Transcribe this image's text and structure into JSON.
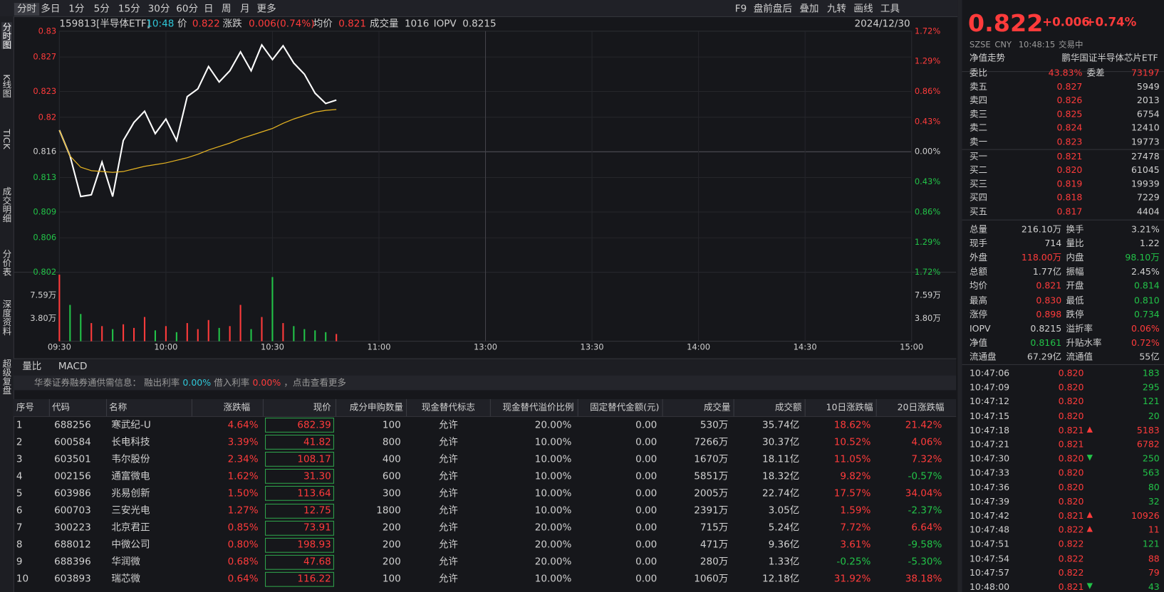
{
  "toolbar": {
    "tabs": [
      "分时",
      "多日",
      "1分",
      "5分",
      "15分",
      "30分",
      "60分",
      "日",
      "周",
      "月",
      "更多"
    ],
    "tools": [
      "F9",
      "盘前盘后",
      "叠加",
      "九转",
      "画线",
      "工具"
    ]
  },
  "sidebar": [
    "分时图",
    "K线图",
    "TICK",
    "成交明细",
    "分价表",
    "深度资料",
    "超级复盘"
  ],
  "header": {
    "code": "159813[半导体ETF]",
    "time": "10:48",
    "price_label": "价",
    "price": "0.822",
    "change_label": "涨跌",
    "change": "0.006(0.74%)",
    "avg_label": "均价",
    "avg": "0.821",
    "volume_label": "成交量",
    "volume": "1016",
    "iopv_label": "IOPV",
    "iopv": "0.8215",
    "date": "2024/12/30"
  },
  "chart_data": [
    {
      "type": "line",
      "grid": true,
      "x": [
        "09:30",
        "09:33",
        "09:36",
        "09:39",
        "09:42",
        "09:45",
        "09:48",
        "09:51",
        "09:54",
        "09:57",
        "10:00",
        "10:03",
        "10:06",
        "10:09",
        "10:12",
        "10:15",
        "10:18",
        "10:21",
        "10:24",
        "10:27",
        "10:30",
        "10:33",
        "10:36",
        "10:39",
        "10:42",
        "10:45",
        "10:48"
      ],
      "series": [
        {
          "color": "#ffffff",
          "values": [
            0.8185,
            0.8155,
            0.8108,
            0.811,
            0.8148,
            0.8108,
            0.8173,
            0.8194,
            0.8207,
            0.8181,
            0.8198,
            0.8173,
            0.8224,
            0.8233,
            0.8259,
            0.8241,
            0.8254,
            0.8276,
            0.8254,
            0.8284,
            0.8267,
            0.8283,
            0.8263,
            0.825,
            0.8228,
            0.8216,
            0.822
          ]
        },
        {
          "color": "#e6b422",
          "values": [
            0.8185,
            0.8155,
            0.8142,
            0.8138,
            0.8137,
            0.8136,
            0.8137,
            0.814,
            0.8143,
            0.8145,
            0.8147,
            0.815,
            0.8153,
            0.8157,
            0.8162,
            0.8166,
            0.817,
            0.8175,
            0.8179,
            0.8183,
            0.8187,
            0.8193,
            0.8198,
            0.8202,
            0.8206,
            0.8208,
            0.8209
          ]
        }
      ],
      "ylim": [
        0.802,
        0.83
      ],
      "yticks": [
        0.83,
        0.827,
        0.823,
        0.82,
        0.816,
        0.813,
        0.809,
        0.806,
        0.802
      ],
      "y2lim": [
        -1.72,
        1.72
      ],
      "y2ticks": [
        {
          "value": 1.72,
          "label": "1.72%"
        },
        {
          "value": 1.29,
          "label": "1.29%"
        },
        {
          "value": 0.86,
          "label": "0.86%"
        },
        {
          "value": 0.43,
          "label": "0.43%"
        },
        {
          "value": 0,
          "label": "0.00%"
        },
        {
          "value": -0.43,
          "label": "0.43%"
        },
        {
          "value": -0.86,
          "label": "0.86%"
        },
        {
          "value": -1.29,
          "label": "1.29%"
        },
        {
          "value": -1.72,
          "label": "1.72%"
        }
      ],
      "xticks": [
        "09:30",
        "10:00",
        "10:30",
        "11:00",
        "13:00",
        "13:30",
        "14:00",
        "14:30",
        "15:00"
      ]
    },
    {
      "type": "bar",
      "x": [
        "09:30",
        "09:33",
        "09:36",
        "09:39",
        "09:42",
        "09:45",
        "09:48",
        "09:51",
        "09:54",
        "09:57",
        "10:00",
        "10:03",
        "10:06",
        "10:09",
        "10:12",
        "10:15",
        "10:18",
        "10:21",
        "10:24",
        "10:27",
        "10:30",
        "10:33",
        "10:36",
        "10:39",
        "10:42",
        "10:45",
        "10:48"
      ],
      "values": [
        110000,
        60000,
        45000,
        30000,
        25000,
        20000,
        28000,
        22000,
        40000,
        18000,
        25000,
        15000,
        30000,
        20000,
        35000,
        22000,
        25000,
        60000,
        20000,
        40000,
        106000,
        30000,
        25000,
        20000,
        18000,
        15000,
        12000
      ],
      "ylim": [
        0,
        113900
      ],
      "yticks": [
        {
          "value": 75900,
          "label": "7.59万"
        },
        {
          "value": 37950,
          "label": "3.80万"
        }
      ]
    }
  ],
  "indicator_tabs": [
    "量比",
    "MACD"
  ],
  "notice": {
    "source": "华泰证券融券通供需信息：",
    "lend_label": "融出利率",
    "lend": "0.00%",
    "borrow_label": "借入利率",
    "borrow": "0.00%",
    "more": "，点击查看更多"
  },
  "table": {
    "headers": [
      "序号",
      "代码",
      "名称",
      "涨跌幅",
      "现价",
      "成分申购数量",
      "现金替代标志",
      "现金替代溢价比例",
      "固定替代金额(元)",
      "成交量",
      "成交额",
      "10日涨跌幅",
      "20日涨跌幅"
    ],
    "rows": [
      [
        "1",
        "688256",
        "寒武纪-U",
        "4.64%",
        "682.39",
        "100",
        "允许",
        "20.00%",
        "0.00",
        "530万",
        "35.74亿",
        "18.62%",
        "21.42%"
      ],
      [
        "2",
        "600584",
        "长电科技",
        "3.39%",
        "41.82",
        "800",
        "允许",
        "10.00%",
        "0.00",
        "7266万",
        "30.37亿",
        "10.52%",
        "4.06%"
      ],
      [
        "3",
        "603501",
        "韦尔股份",
        "2.34%",
        "108.17",
        "400",
        "允许",
        "10.00%",
        "0.00",
        "1670万",
        "18.11亿",
        "11.05%",
        "7.32%"
      ],
      [
        "4",
        "002156",
        "通富微电",
        "1.62%",
        "31.30",
        "600",
        "允许",
        "10.00%",
        "0.00",
        "5851万",
        "18.32亿",
        "9.82%",
        "-0.57%"
      ],
      [
        "5",
        "603986",
        "兆易创新",
        "1.50%",
        "113.64",
        "300",
        "允许",
        "10.00%",
        "0.00",
        "2005万",
        "22.74亿",
        "17.57%",
        "34.04%"
      ],
      [
        "6",
        "600703",
        "三安光电",
        "1.27%",
        "12.75",
        "1800",
        "允许",
        "10.00%",
        "0.00",
        "2391万",
        "3.05亿",
        "1.59%",
        "-2.37%"
      ],
      [
        "7",
        "300223",
        "北京君正",
        "0.85%",
        "73.91",
        "200",
        "允许",
        "20.00%",
        "0.00",
        "715万",
        "5.24亿",
        "7.72%",
        "6.64%"
      ],
      [
        "8",
        "688012",
        "中微公司",
        "0.80%",
        "198.93",
        "200",
        "允许",
        "20.00%",
        "0.00",
        "471万",
        "9.36亿",
        "3.61%",
        "-9.58%"
      ],
      [
        "9",
        "688396",
        "华润微",
        "0.68%",
        "47.68",
        "200",
        "允许",
        "20.00%",
        "0.00",
        "280万",
        "1.33亿",
        "-0.25%",
        "-5.30%"
      ],
      [
        "10",
        "603893",
        "瑞芯微",
        "0.64%",
        "116.22",
        "100",
        "允许",
        "10.00%",
        "0.00",
        "1060万",
        "12.18亿",
        "31.92%",
        "38.18%"
      ]
    ]
  },
  "quote": {
    "price": "0.822",
    "change": "+0.006",
    "pct": "+0.74%",
    "exchange": "SZSE",
    "currency": "CNY",
    "time": "10:48:15",
    "status": "交易中",
    "nav_link": "净值走势",
    "fund_name": "鹏华国证半导体芯片ETF",
    "ratio_label": "委比",
    "ratio": "43.83%",
    "diff_label": "委差",
    "diff": "73197",
    "asks": [
      [
        "卖五",
        "0.827",
        "5949"
      ],
      [
        "卖四",
        "0.826",
        "2013"
      ],
      [
        "卖三",
        "0.825",
        "6754"
      ],
      [
        "卖二",
        "0.824",
        "12410"
      ],
      [
        "卖一",
        "0.823",
        "19773"
      ]
    ],
    "bids": [
      [
        "买一",
        "0.821",
        "27478"
      ],
      [
        "买二",
        "0.820",
        "61045"
      ],
      [
        "买三",
        "0.819",
        "19939"
      ],
      [
        "买四",
        "0.818",
        "7229"
      ],
      [
        "买五",
        "0.817",
        "4404"
      ]
    ],
    "stats": [
      [
        {
          "label": "总量",
          "value": "216.10万",
          "color": "#d0d0d0"
        },
        {
          "label": "换手",
          "value": "3.21%",
          "color": "#d0d0d0"
        }
      ],
      [
        {
          "label": "现手",
          "value": "714",
          "color": "#d0d0d0"
        },
        {
          "label": "量比",
          "value": "1.22",
          "color": "#d0d0d0"
        }
      ],
      [
        {
          "label": "外盘",
          "value": "118.00万",
          "color": "#ff3b3b"
        },
        {
          "label": "内盘",
          "value": "98.10万",
          "color": "#22c348"
        }
      ],
      [
        {
          "label": "总额",
          "value": "1.77亿",
          "color": "#d0d0d0"
        },
        {
          "label": "振幅",
          "value": "2.45%",
          "color": "#d0d0d0"
        }
      ],
      [
        {
          "label": "均价",
          "value": "0.821",
          "color": "#ff3b3b"
        },
        {
          "label": "开盘",
          "value": "0.814",
          "color": "#22c348"
        }
      ],
      [
        {
          "label": "最高",
          "value": "0.830",
          "color": "#ff3b3b"
        },
        {
          "label": "最低",
          "value": "0.810",
          "color": "#22c348"
        }
      ],
      [
        {
          "label": "涨停",
          "value": "0.898",
          "color": "#ff3b3b"
        },
        {
          "label": "跌停",
          "value": "0.734",
          "color": "#22c348"
        }
      ],
      [
        {
          "label": "IOPV",
          "value": "0.8215",
          "color": "#d0d0d0"
        },
        {
          "label": "溢折率",
          "value": "0.06%",
          "color": "#ff3b3b"
        }
      ],
      [
        {
          "label": "净值",
          "value": "0.8161",
          "color": "#22c348"
        },
        {
          "label": "升贴水率",
          "value": "0.72%",
          "color": "#ff3b3b"
        }
      ],
      [
        {
          "label": "流通盘",
          "value": "67.29亿",
          "color": "#d0d0d0"
        },
        {
          "label": "流通值",
          "value": "55亿",
          "color": "#d0d0d0"
        }
      ]
    ],
    "trades": [
      {
        "time": "10:47:06",
        "price": "0.820",
        "volume": "183",
        "color": "#22c348"
      },
      {
        "time": "10:47:09",
        "price": "0.820",
        "volume": "295",
        "color": "#22c348"
      },
      {
        "time": "10:47:12",
        "price": "0.820",
        "volume": "121",
        "color": "#22c348"
      },
      {
        "time": "10:47:15",
        "price": "0.820",
        "volume": "20",
        "color": "#22c348"
      },
      {
        "time": "10:47:18",
        "price": "0.821",
        "volume": "5183",
        "color": "#ff3b3b",
        "arrow": "up"
      },
      {
        "time": "10:47:21",
        "price": "0.821",
        "volume": "6782",
        "color": "#ff3b3b"
      },
      {
        "time": "10:47:30",
        "price": "0.820",
        "volume": "250",
        "color": "#22c348",
        "arrow": "down"
      },
      {
        "time": "10:47:33",
        "price": "0.820",
        "volume": "563",
        "color": "#22c348"
      },
      {
        "time": "10:47:36",
        "price": "0.820",
        "volume": "80",
        "color": "#22c348"
      },
      {
        "time": "10:47:39",
        "price": "0.820",
        "volume": "32",
        "color": "#22c348"
      },
      {
        "time": "10:47:42",
        "price": "0.821",
        "volume": "10926",
        "color": "#ff3b3b",
        "arrow": "up"
      },
      {
        "time": "10:47:48",
        "price": "0.822",
        "volume": "11",
        "color": "#ff3b3b",
        "arrow": "up"
      },
      {
        "time": "10:47:51",
        "price": "0.822",
        "volume": "121",
        "color": "#22c348"
      },
      {
        "time": "10:47:54",
        "price": "0.822",
        "volume": "88",
        "color": "#ff3b3b"
      },
      {
        "time": "10:47:57",
        "price": "0.822",
        "volume": "79",
        "color": "#ff3b3b"
      },
      {
        "time": "10:48:00",
        "price": "0.821",
        "volume": "43",
        "color": "#22c348",
        "arrow": "down"
      }
    ]
  }
}
